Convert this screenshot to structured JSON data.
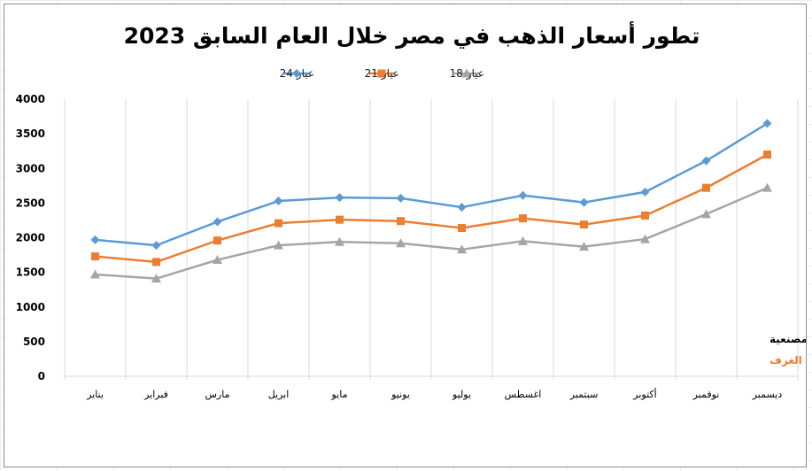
{
  "chart_data": {
    "type": "line",
    "title": "تطور أسعار الذهب في مصر خلال العام السابق 2023",
    "categories": [
      "يناير",
      "فبراير",
      "مارس",
      "ابريل",
      "مايو",
      "يونيو",
      "يوليو",
      "اغسطس",
      "سبتمبر",
      "أكتوبر",
      "نوفمبر",
      "ديسمبر"
    ],
    "ylim": [
      0,
      4000
    ],
    "yticks": [
      0,
      500,
      1000,
      1500,
      2000,
      2500,
      3000,
      3500,
      4000
    ],
    "grid": "vertical",
    "legend_position": "top",
    "series": [
      {
        "name": "عيار 24",
        "color": "#5b9bd5",
        "marker": "diamond",
        "values": [
          1970,
          1890,
          2230,
          2530,
          2580,
          2570,
          2440,
          2610,
          2510,
          2660,
          3110,
          3650
        ]
      },
      {
        "name": "عيار 21",
        "color": "#ed7d31",
        "marker": "square",
        "values": [
          1730,
          1650,
          1960,
          2210,
          2260,
          2240,
          2140,
          2280,
          2190,
          2320,
          2720,
          3200
        ]
      },
      {
        "name": "عيار 18",
        "color": "#a5a5a5",
        "marker": "triangle",
        "values": [
          1470,
          1410,
          1680,
          1890,
          1940,
          1920,
          1830,
          1950,
          1870,
          1980,
          2340,
          2720
        ]
      }
    ],
    "annotations": [
      {
        "text": "الأسعار بالجنيه ولا تشمل المصنعية",
        "color": "#000000"
      },
      {
        "text": "المصدر: شعبة الذهب باتحاد الغرف",
        "color": "#ed7d31"
      }
    ]
  }
}
